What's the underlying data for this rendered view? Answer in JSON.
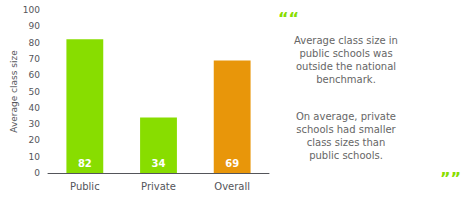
{
  "chart_data": {
    "type": "bar",
    "categories": [
      "Public",
      "Private",
      "Overall"
    ],
    "values": [
      82,
      34,
      69
    ],
    "colors": [
      "#88dd00",
      "#88dd00",
      "#e8960a"
    ],
    "ylabel": "Average class size",
    "ylim": [
      0,
      100
    ],
    "yticks": [
      0,
      10,
      20,
      30,
      40,
      50,
      60,
      70,
      80,
      90,
      100
    ],
    "grid": false,
    "data_labels": true,
    "annotations": [
      "““",
      "Average class size in\npublic schools was\noutside the national\nbenchmark.",
      "On average, private\nschools had smaller\nclass sizes than\npublic schools.",
      "””"
    ]
  }
}
